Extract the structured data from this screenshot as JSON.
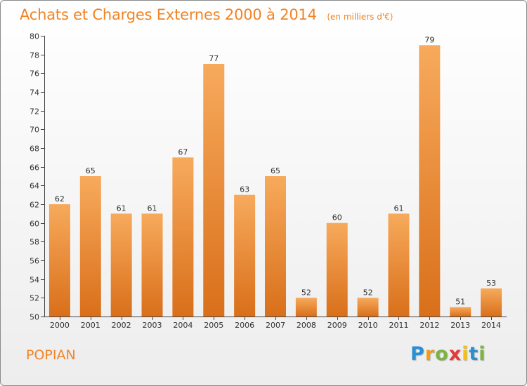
{
  "chart_data": {
    "type": "bar",
    "title": "Achats et Charges Externes 2000 à 2014",
    "subtitle": "(en milliers d'€)",
    "categories": [
      "2000",
      "2001",
      "2002",
      "2003",
      "2004",
      "2005",
      "2006",
      "2007",
      "2008",
      "2009",
      "2010",
      "2011",
      "2012",
      "2013",
      "2014"
    ],
    "values": [
      62,
      65,
      61,
      61,
      67,
      77,
      63,
      65,
      52,
      60,
      52,
      61,
      79,
      51,
      53
    ],
    "ylim": [
      50,
      80
    ],
    "yticks": [
      50,
      52,
      54,
      56,
      58,
      60,
      62,
      64,
      66,
      68,
      70,
      72,
      74,
      76,
      78,
      80
    ],
    "grid": false,
    "legend": "none"
  },
  "location": "POPIAN",
  "brand": {
    "letters": [
      "P",
      "r",
      "o",
      "x",
      "i",
      "t",
      "i"
    ],
    "colors": [
      "#2a8fd0",
      "#f39c12",
      "#7cb342",
      "#e53935",
      "#f4c20d",
      "#2a8fd0",
      "#7cb342"
    ]
  },
  "colors": {
    "accent": "#f08424",
    "bar_light": "#f7aa5c",
    "bar_dark": "#d96f1a",
    "axis": "#444444",
    "text": "#333333"
  }
}
